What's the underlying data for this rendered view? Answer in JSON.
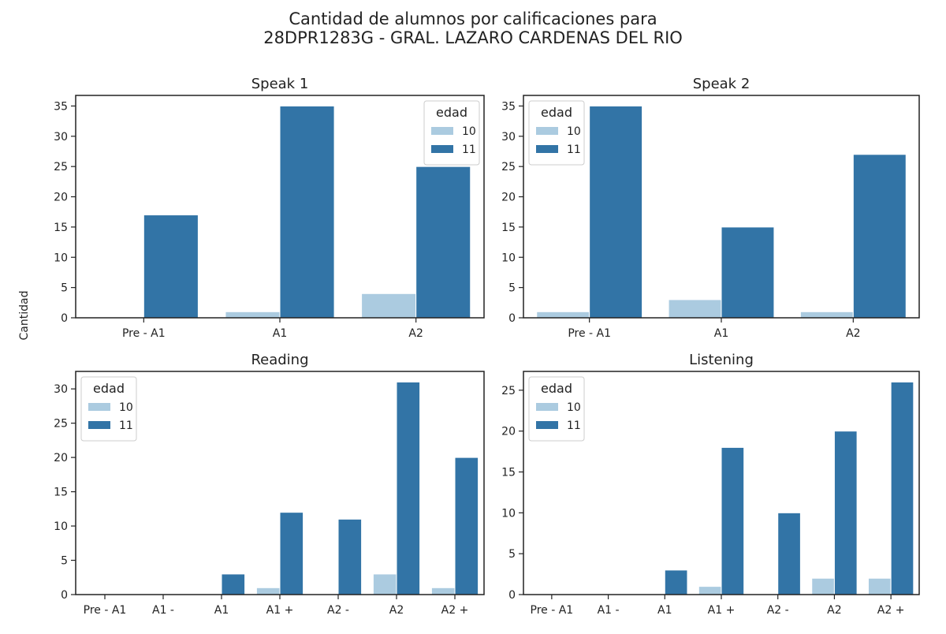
{
  "figure": {
    "title_line1": "Cantidad de alumnos por calificaciones para",
    "title_line2": "28DPR1283G - GRAL. LAZARO CARDENAS DEL RIO",
    "ylabel": "Cantidad"
  },
  "colors": {
    "edad_10": "#abcbe0",
    "edad_11": "#3274a6",
    "axis": "#222222"
  },
  "chart_data": [
    {
      "type": "bar",
      "title": "Speak 1",
      "categories": [
        "Pre - A1",
        "A1",
        "A2"
      ],
      "series": [
        {
          "name": "10",
          "values": [
            0,
            1,
            4
          ]
        },
        {
          "name": "11",
          "values": [
            17,
            35,
            25
          ]
        }
      ],
      "yticks": [
        0,
        5,
        10,
        15,
        20,
        25,
        30,
        35
      ],
      "ylim": [
        0,
        36.75
      ],
      "legend": {
        "title": "edad",
        "position": "upper right"
      }
    },
    {
      "type": "bar",
      "title": "Speak 2",
      "categories": [
        "Pre - A1",
        "A1",
        "A2"
      ],
      "series": [
        {
          "name": "10",
          "values": [
            1,
            3,
            1
          ]
        },
        {
          "name": "11",
          "values": [
            35,
            15,
            27
          ]
        }
      ],
      "yticks": [
        0,
        5,
        10,
        15,
        20,
        25,
        30,
        35
      ],
      "ylim": [
        0,
        36.75
      ],
      "legend": {
        "title": "edad",
        "position": "upper left"
      }
    },
    {
      "type": "bar",
      "title": "Reading",
      "categories": [
        "Pre - A1",
        "A1 -",
        "A1",
        "A1 +",
        "A2 -",
        "A2",
        "A2 +"
      ],
      "series": [
        {
          "name": "10",
          "values": [
            0,
            0,
            0,
            1,
            0,
            3,
            1
          ]
        },
        {
          "name": "11",
          "values": [
            0,
            0,
            3,
            12,
            11,
            31,
            20
          ]
        }
      ],
      "yticks": [
        0,
        5,
        10,
        15,
        20,
        25,
        30
      ],
      "ylim": [
        0,
        32.55
      ],
      "legend": {
        "title": "edad",
        "position": "upper left"
      }
    },
    {
      "type": "bar",
      "title": "Listening",
      "categories": [
        "Pre - A1",
        "A1 -",
        "A1",
        "A1 +",
        "A2 -",
        "A2",
        "A2 +"
      ],
      "series": [
        {
          "name": "10",
          "values": [
            0,
            0,
            0,
            1,
            0,
            2,
            2
          ]
        },
        {
          "name": "11",
          "values": [
            0,
            0,
            3,
            18,
            10,
            20,
            26
          ]
        }
      ],
      "yticks": [
        0,
        5,
        10,
        15,
        20,
        25
      ],
      "ylim": [
        0,
        27.3
      ],
      "legend": {
        "title": "edad",
        "position": "upper left"
      }
    }
  ]
}
